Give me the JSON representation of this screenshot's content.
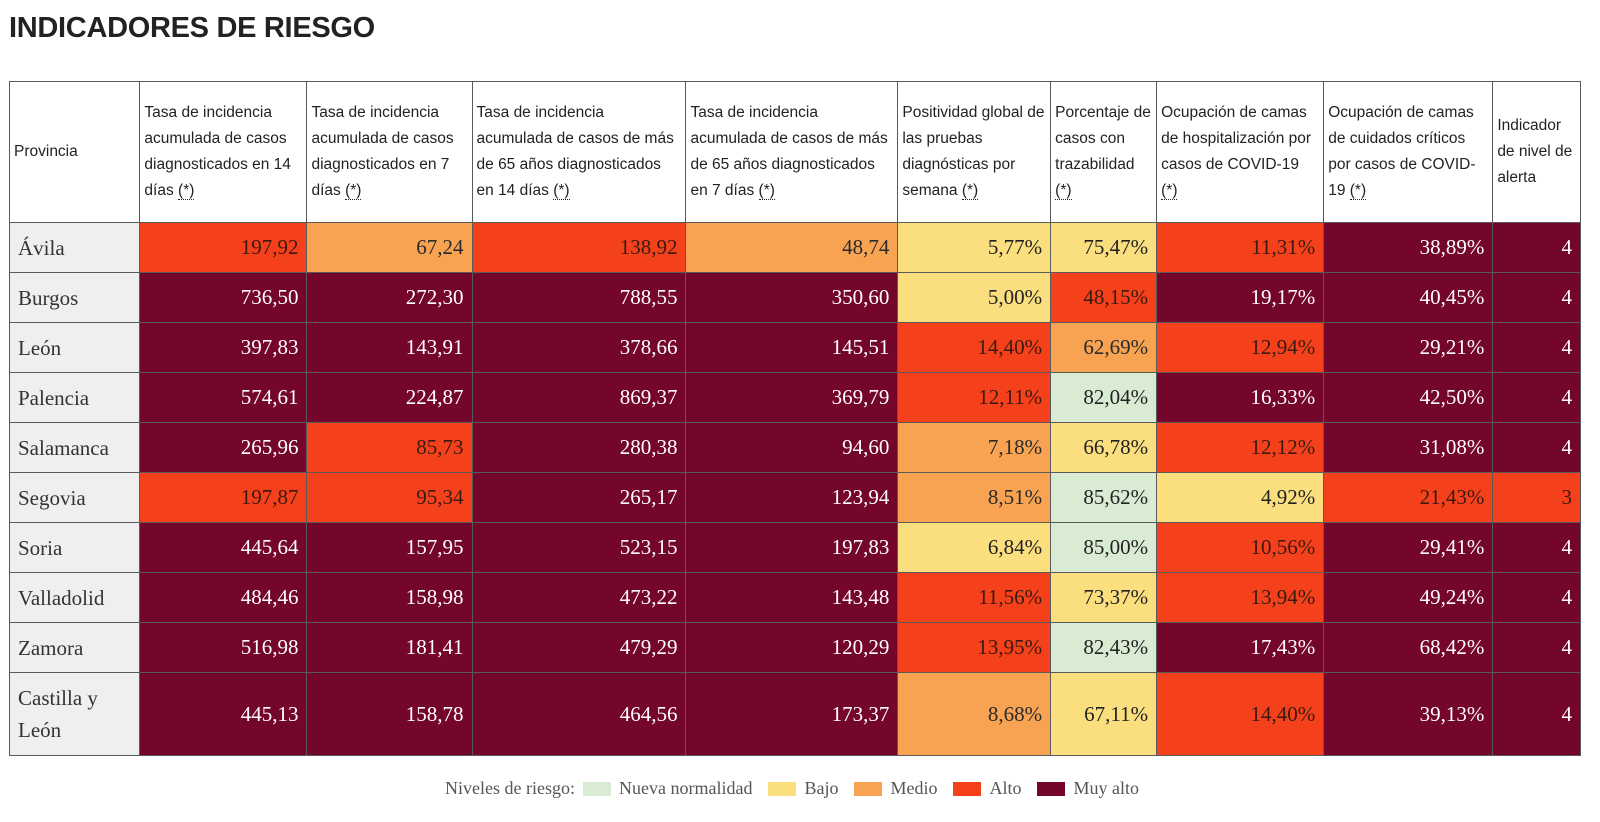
{
  "title": "INDICADORES DE RIESGO",
  "header": {
    "provincia": "Provincia",
    "asterisk": "(*)",
    "columns": [
      {
        "label": "Tasa de incidencia acumulada de casos diagnosticados en 14 días"
      },
      {
        "label": "Tasa de incidencia acumulada de casos diagnosticados en 7 días"
      },
      {
        "label": "Tasa de incidencia acumulada de casos de más de 65 años diagnosticados en 14 días"
      },
      {
        "label": "Tasa de incidencia acumulada de casos de más de 65 años diagnosticados en 7 días"
      },
      {
        "label": "Positividad global de las pruebas diagnósticas por semana"
      },
      {
        "label": "Porcentaje de casos con trazabilidad"
      },
      {
        "label": "Ocupación de camas de hospitalización por casos de COVID-19"
      },
      {
        "label": "Ocupación de camas de cuidados críticos por casos de COVID-19"
      },
      {
        "label": "Indicador de nivel de alerta"
      }
    ]
  },
  "colors": {
    "nueva_normalidad": "#d9ecd3",
    "bajo": "#fbdf7f",
    "medio": "#f8a352",
    "alto": "#f5411b",
    "muy_alto": "#73062a"
  },
  "chart_data": {
    "type": "table",
    "title": "INDICADORES DE RIESGO",
    "row_header": "Provincia",
    "level_names": [
      "Nueva normalidad",
      "Bajo",
      "Medio",
      "Alto",
      "Muy alto"
    ],
    "rows": [
      {
        "provincia": "Ávila",
        "values": [
          "197,92",
          "67,24",
          "138,92",
          "48,74",
          "5,77%",
          "75,47%",
          "11,31%",
          "38,89%",
          "4"
        ],
        "levels": [
          3,
          2,
          3,
          2,
          1,
          1,
          3,
          4,
          4
        ]
      },
      {
        "provincia": "Burgos",
        "values": [
          "736,50",
          "272,30",
          "788,55",
          "350,60",
          "5,00%",
          "48,15%",
          "19,17%",
          "40,45%",
          "4"
        ],
        "levels": [
          4,
          4,
          4,
          4,
          1,
          3,
          4,
          4,
          4
        ]
      },
      {
        "provincia": "León",
        "values": [
          "397,83",
          "143,91",
          "378,66",
          "145,51",
          "14,40%",
          "62,69%",
          "12,94%",
          "29,21%",
          "4"
        ],
        "levels": [
          4,
          4,
          4,
          4,
          3,
          2,
          3,
          4,
          4
        ]
      },
      {
        "provincia": "Palencia",
        "values": [
          "574,61",
          "224,87",
          "869,37",
          "369,79",
          "12,11%",
          "82,04%",
          "16,33%",
          "42,50%",
          "4"
        ],
        "levels": [
          4,
          4,
          4,
          4,
          3,
          0,
          4,
          4,
          4
        ]
      },
      {
        "provincia": "Salamanca",
        "values": [
          "265,96",
          "85,73",
          "280,38",
          "94,60",
          "7,18%",
          "66,78%",
          "12,12%",
          "31,08%",
          "4"
        ],
        "levels": [
          4,
          3,
          4,
          4,
          2,
          1,
          3,
          4,
          4
        ]
      },
      {
        "provincia": "Segovia",
        "values": [
          "197,87",
          "95,34",
          "265,17",
          "123,94",
          "8,51%",
          "85,62%",
          "4,92%",
          "21,43%",
          "3"
        ],
        "levels": [
          3,
          3,
          4,
          4,
          2,
          0,
          1,
          3,
          3
        ]
      },
      {
        "provincia": "Soria",
        "values": [
          "445,64",
          "157,95",
          "523,15",
          "197,83",
          "6,84%",
          "85,00%",
          "10,56%",
          "29,41%",
          "4"
        ],
        "levels": [
          4,
          4,
          4,
          4,
          1,
          0,
          3,
          4,
          4
        ]
      },
      {
        "provincia": "Valladolid",
        "values": [
          "484,46",
          "158,98",
          "473,22",
          "143,48",
          "11,56%",
          "73,37%",
          "13,94%",
          "49,24%",
          "4"
        ],
        "levels": [
          4,
          4,
          4,
          4,
          3,
          1,
          3,
          4,
          4
        ]
      },
      {
        "provincia": "Zamora",
        "values": [
          "516,98",
          "181,41",
          "479,29",
          "120,29",
          "13,95%",
          "82,43%",
          "17,43%",
          "68,42%",
          "4"
        ],
        "levels": [
          4,
          4,
          4,
          4,
          3,
          0,
          4,
          4,
          4
        ]
      },
      {
        "provincia": "Castilla y León",
        "values": [
          "445,13",
          "158,78",
          "464,56",
          "173,37",
          "8,68%",
          "67,11%",
          "14,40%",
          "39,13%",
          "4"
        ],
        "levels": [
          4,
          4,
          4,
          4,
          2,
          1,
          3,
          4,
          4
        ]
      }
    ]
  },
  "legend": {
    "label": "Niveles de riesgo:",
    "items": [
      "Nueva normalidad",
      "Bajo",
      "Medio",
      "Alto",
      "Muy alto"
    ]
  }
}
